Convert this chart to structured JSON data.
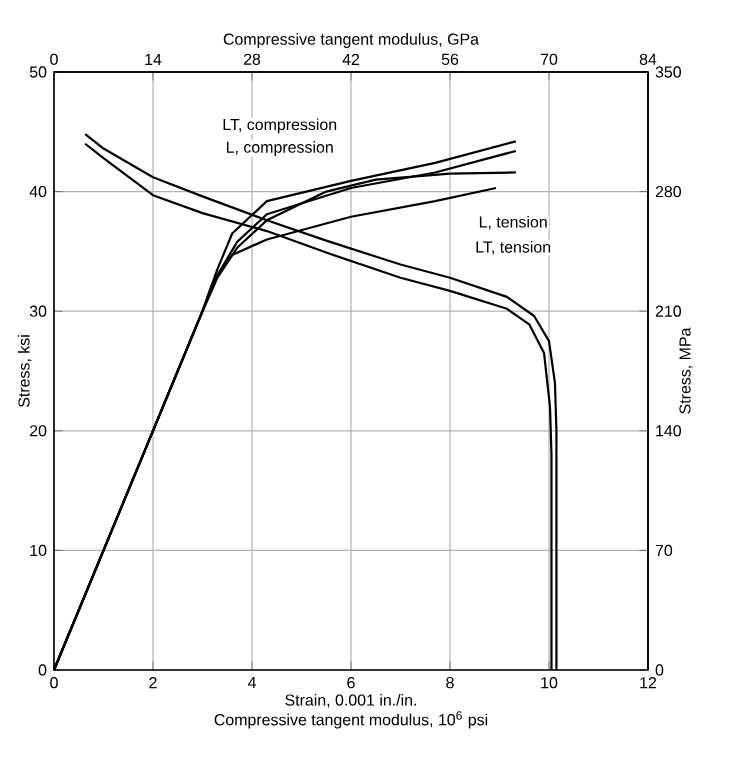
{
  "chart_data": {
    "type": "line",
    "x2label": "Compressive tangent modulus, GPa",
    "xlabel": "Strain, 0.001 in./in.",
    "ylabel": "Stress, ksi",
    "y2label": "Stress, MPa",
    "annotations": [
      "Compressive tangent modulus, 10$^{6}$ psi",
      "LT, compression",
      "L, compression",
      "L, tension",
      "LT, tension"
    ],
    "series": [
      {
        "color": "#000000",
        "x": [
          0.63,
          1.0,
          2.0,
          3.0,
          4.3,
          5.5,
          7.0,
          8.0,
          9.15,
          9.7,
          10.0,
          10.12,
          10.15,
          10.15
        ],
        "values": [
          44.8,
          43.6,
          41.2,
          39.6,
          37.6,
          35.9,
          33.9,
          32.8,
          31.2,
          29.6,
          27.5,
          24,
          20,
          0
        ]
      },
      {
        "color": "#000000",
        "x": [
          0.63,
          1.0,
          2.0,
          3.0,
          4.3,
          5.5,
          7.0,
          8.0,
          9.15,
          9.6,
          9.9,
          10.02,
          10.05,
          10.05
        ],
        "values": [
          44.0,
          42.8,
          39.7,
          38.2,
          36.7,
          34.9,
          32.8,
          31.7,
          30.2,
          28.9,
          26.5,
          22,
          18,
          0
        ]
      },
      {
        "color": "#000000",
        "x": [
          0,
          3.0,
          3.3,
          3.6,
          4.3,
          6.0,
          7.7,
          9.33
        ],
        "values": [
          0,
          30,
          33.5,
          36.5,
          39.2,
          40.9,
          42.4,
          44.2
        ]
      },
      {
        "color": "#000000",
        "x": [
          0,
          3.0,
          3.3,
          3.7,
          4.3,
          6.0,
          7.7,
          9.33
        ],
        "values": [
          0,
          30,
          33,
          35.8,
          38.1,
          40.3,
          41.6,
          43.4
        ]
      },
      {
        "color": "#000000",
        "x": [
          0,
          3.0,
          3.3,
          3.7,
          4.3,
          5.5,
          6.5,
          8.0,
          9.33
        ],
        "values": [
          0,
          30,
          32.8,
          35.3,
          37.6,
          40.0,
          41.0,
          41.5,
          41.6
        ]
      },
      {
        "color": "#000000",
        "x": [
          0,
          3.0,
          3.2,
          3.6,
          4.3,
          6.0,
          7.7,
          8.93
        ],
        "values": [
          0,
          30,
          32.3,
          34.7,
          36.0,
          37.9,
          39.2,
          40.3
        ]
      }
    ],
    "xlim": [
      0,
      12
    ],
    "xticks": [
      0,
      2,
      4,
      6,
      8,
      10,
      12
    ],
    "ylim": [
      0,
      50
    ],
    "yticks": [
      0,
      10,
      20,
      30,
      40,
      50
    ],
    "x2lim": [
      0,
      84
    ],
    "x2ticks": [
      0,
      14,
      28,
      42,
      56,
      70,
      84
    ],
    "y2lim": [
      0,
      350
    ],
    "y2ticks": [
      0,
      70,
      140,
      210,
      280,
      350
    ],
    "grid": true
  }
}
